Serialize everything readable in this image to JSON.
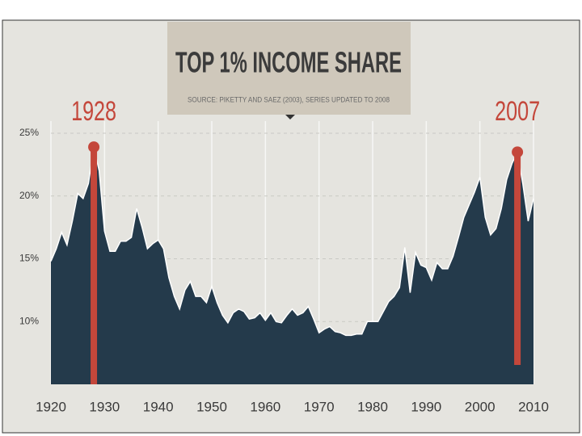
{
  "chart_data": {
    "type": "area",
    "title": "TOP 1% INCOME SHARE",
    "subtitle": "SOURCE: PIKETTY AND SAEZ (2003), SERIES UPDATED TO 2008",
    "x": [
      1920,
      1921,
      1922,
      1923,
      1924,
      1925,
      1926,
      1927,
      1928,
      1929,
      1930,
      1931,
      1932,
      1933,
      1934,
      1935,
      1936,
      1937,
      1938,
      1939,
      1940,
      1941,
      1942,
      1943,
      1944,
      1945,
      1946,
      1947,
      1948,
      1949,
      1950,
      1951,
      1952,
      1953,
      1954,
      1955,
      1956,
      1957,
      1958,
      1959,
      1960,
      1961,
      1962,
      1963,
      1964,
      1965,
      1966,
      1967,
      1968,
      1969,
      1970,
      1971,
      1972,
      1973,
      1974,
      1975,
      1976,
      1977,
      1978,
      1979,
      1980,
      1981,
      1982,
      1983,
      1984,
      1985,
      1986,
      1987,
      1988,
      1989,
      1990,
      1991,
      1992,
      1993,
      1994,
      1995,
      1996,
      1997,
      1998,
      1999,
      2000,
      2001,
      2002,
      2003,
      2004,
      2005,
      2006,
      2007,
      2008,
      2009,
      2010
    ],
    "values": [
      14.8,
      15.8,
      17.1,
      16.1,
      18.0,
      20.2,
      19.8,
      21.0,
      23.9,
      22.0,
      17.2,
      15.6,
      15.6,
      16.4,
      16.4,
      16.7,
      19.0,
      17.5,
      15.8,
      16.2,
      16.5,
      15.8,
      13.5,
      12.0,
      11.0,
      12.5,
      13.2,
      12.0,
      12.0,
      11.5,
      12.8,
      11.5,
      10.5,
      9.9,
      10.7,
      11.0,
      10.8,
      10.2,
      10.3,
      10.7,
      10.1,
      10.7,
      10.0,
      9.9,
      10.5,
      11.0,
      10.5,
      10.7,
      11.2,
      10.2,
      9.1,
      9.4,
      9.6,
      9.2,
      9.1,
      8.9,
      8.9,
      9.0,
      9.0,
      10.0,
      10.0,
      10.0,
      10.8,
      11.6,
      12.0,
      12.7,
      15.9,
      12.3,
      15.5,
      14.5,
      14.3,
      13.3,
      14.7,
      14.2,
      14.2,
      15.2,
      16.7,
      18.3,
      19.3,
      20.3,
      21.5,
      18.3,
      16.9,
      17.4,
      19.0,
      21.3,
      22.6,
      23.5,
      21.0,
      18.0,
      19.8
    ],
    "color": "#243a4b",
    "annotations": [
      1928,
      2007
    ],
    "annotation_color": "#c4473b",
    "xlim": [
      1920,
      2010
    ],
    "xticks": [
      1920,
      1930,
      1940,
      1950,
      1960,
      1970,
      1980,
      1990,
      2000,
      2010
    ],
    "ylim": [
      5,
      25
    ],
    "yticks": [
      {
        "value": 10,
        "label": "10%"
      },
      {
        "value": 15,
        "label": "15%"
      },
      {
        "value": 20,
        "label": "20%"
      },
      {
        "value": 25,
        "label": "25%"
      }
    ],
    "grid": true
  }
}
